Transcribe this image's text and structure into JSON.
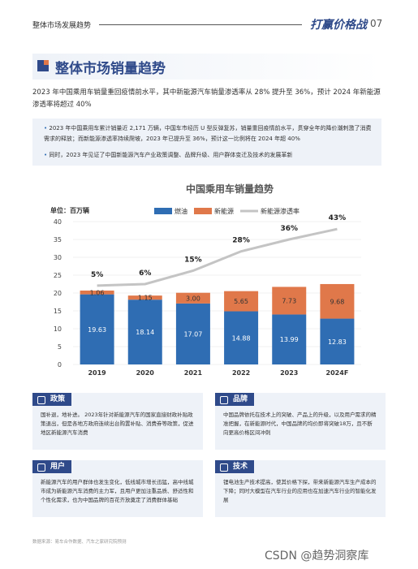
{
  "header": {
    "section": "整体市场发展趋势",
    "brand": "打赢价格战",
    "page": "07"
  },
  "title": "整体市场销量趋势",
  "intro": "2023 年中国乘用车销量重回疫情前水平，其中新能源汽车销量渗透率从 28% 提升至 36%，预计 2024 年新能源渗透率将超过 40%",
  "bullets": [
    "2023 年中国乘用车累计销量近 2,171 万辆，中国车市经历 U 型反弹复苏，销量重回疫情前水平，贯穿全年的降价潮刺激了消费需求的释放；而新能源渗透率持续爬坡，2023 年已提升至 36%，预计这一比例将在 2024 年超 40%",
    "同时，2023 年见证了中国新能源汽车产业政策调整、品牌升级、用户群体变迁及技术的发展革新"
  ],
  "chart_data": {
    "type": "stacked_bar_line",
    "title": "中国乘用车销量趋势",
    "y_label": "单位：百万辆",
    "categories": [
      "2019",
      "2020",
      "2021",
      "2022",
      "2023",
      "2024F"
    ],
    "ylim": [
      0,
      40
    ],
    "yticks": [
      0,
      5,
      10,
      15,
      20,
      25,
      30,
      35,
      40
    ],
    "y2lim": [
      -48,
      48
    ],
    "grid": true,
    "legend": "top",
    "series": [
      {
        "name": "燃油",
        "color": "#2f6db3",
        "values": [
          19.63,
          18.14,
          17.07,
          14.88,
          13.99,
          12.83
        ]
      },
      {
        "name": "新能源",
        "color": "#e0784a",
        "values": [
          1.06,
          1.15,
          3.0,
          5.65,
          7.73,
          9.68
        ],
        "value_labels": [
          "1.06",
          "1.15",
          "3.00",
          "5.65",
          "7.73",
          "9.68"
        ]
      },
      {
        "name": "新能源渗透率",
        "color": "#c4c4c4",
        "type": "line",
        "axis": "y2",
        "values": [
          5,
          6,
          15,
          28,
          36,
          43
        ],
        "value_labels": [
          "5%",
          "6%",
          "15%",
          "28%",
          "36%",
          "43%"
        ]
      }
    ]
  },
  "boxes": [
    {
      "title": "政策",
      "text": "国补退，地补进。 2023年针对新能源汽车的国家直接财政补贴政策退出，但是各地方政府连续出台购置补贴、消费券等政策，促进地区新能源汽车消费"
    },
    {
      "title": "品牌",
      "text": "中国品牌依托在技术上的突破、产品上的升级，以及用户需求的精准把握，在新能源时代，中国品牌的均价即将突破18万，且不断向更高价格区间冲刺"
    },
    {
      "title": "用户",
      "text": "新能源汽车的用户群体也发生变化，低线城市增长迅猛，高中线城市成为新能源汽车消费的主力军，且用户更加注重品质、舒适性和个性化需求，也为中国品牌的百花齐放奠定了消费群体基础"
    },
    {
      "title": "技术",
      "text": "锂电池生产技术提高，使其价格下探，带来新能源汽车生产成本的下降；同时大模型在汽车行业的应用也在加速汽车行业的智能化发展"
    }
  ],
  "source": "数据来源：易车合作数据、汽车之家研究院预测",
  "watermark": "CSDN @趋势洞察库"
}
